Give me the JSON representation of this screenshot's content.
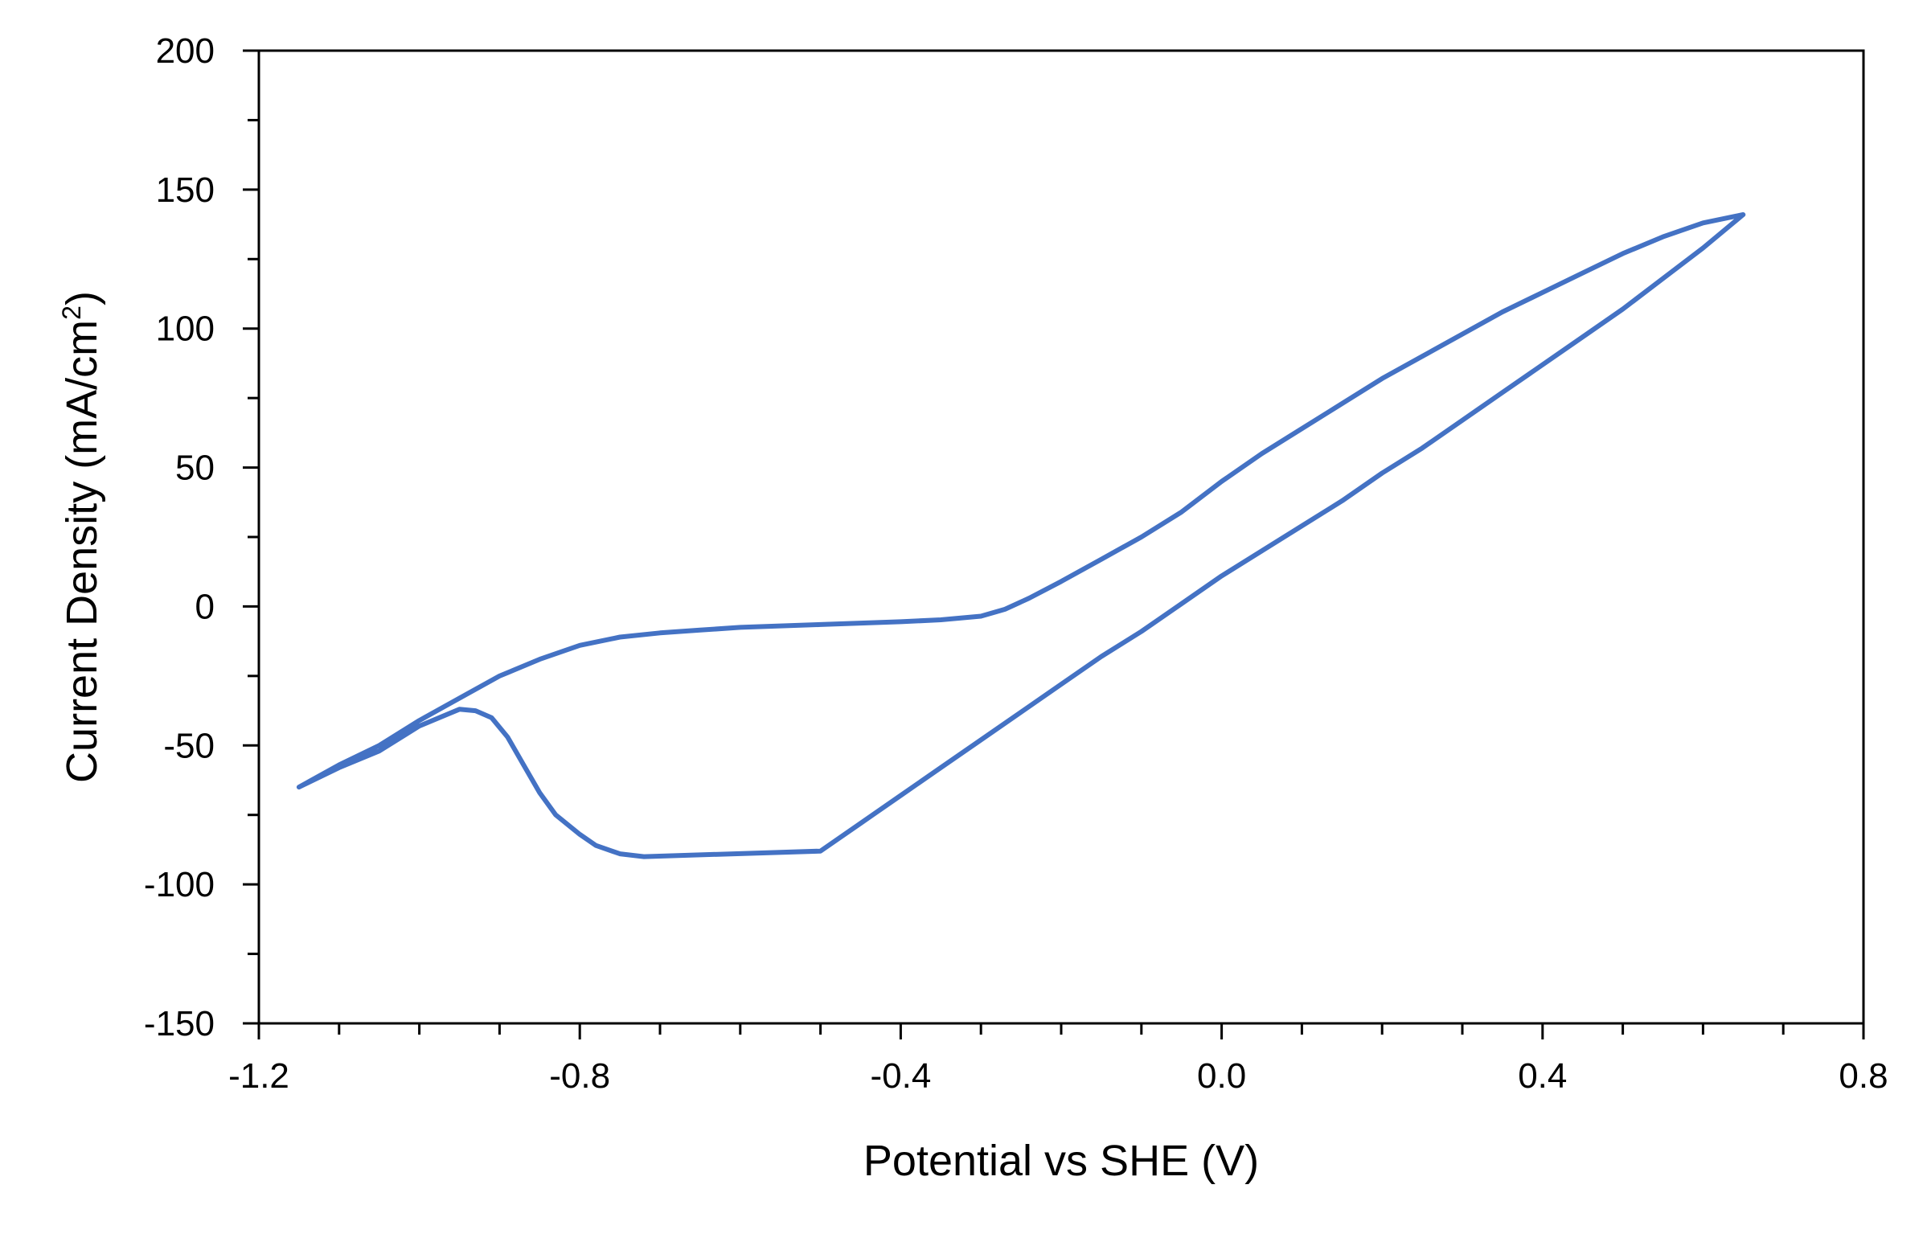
{
  "chart_data": {
    "type": "line",
    "title": "",
    "xlabel": "Potential vs SHE (V)",
    "ylabel": "Current Density  (mA/cm",
    "ylabel_superscript": "2",
    "ylabel_close": ")",
    "xlim": [
      -1.2,
      0.8
    ],
    "ylim": [
      -150,
      200
    ],
    "x_major_ticks": [
      -1.2,
      -0.8,
      -0.4,
      0.0,
      0.4,
      0.8
    ],
    "x_tick_labels": [
      "-1.2",
      "-0.8",
      "-0.4",
      "0.0",
      "0.4",
      "0.8"
    ],
    "x_minor_step": 0.1,
    "y_major_ticks": [
      -150,
      -100,
      -50,
      0,
      50,
      100,
      150,
      200
    ],
    "y_tick_labels": [
      "-150",
      "-100",
      "-50",
      "0",
      "50",
      "100",
      "150",
      "200"
    ],
    "y_minor_step": 25,
    "grid": false,
    "legend": "none",
    "series": [
      {
        "color": "#4472C4",
        "points": [
          [
            0.65,
            141
          ],
          [
            0.6,
            129
          ],
          [
            0.55,
            118
          ],
          [
            0.5,
            107
          ],
          [
            0.45,
            97
          ],
          [
            0.4,
            87
          ],
          [
            0.35,
            77
          ],
          [
            0.3,
            67
          ],
          [
            0.25,
            57
          ],
          [
            0.2,
            48
          ],
          [
            0.15,
            38
          ],
          [
            0.1,
            29
          ],
          [
            0.05,
            20
          ],
          [
            0.0,
            11
          ],
          [
            -0.05,
            1
          ],
          [
            -0.1,
            -9
          ],
          [
            -0.15,
            -18
          ],
          [
            -0.2,
            -28
          ],
          [
            -0.25,
            -38
          ],
          [
            -0.3,
            -48
          ],
          [
            -0.35,
            -58
          ],
          [
            -0.4,
            -68
          ],
          [
            -0.45,
            -78
          ],
          [
            -0.5,
            -88
          ],
          [
            -0.55,
            -98
          ],
          [
            -0.6,
            -108
          ],
          [
            -0.65,
            -118
          ],
          [
            -0.7,
            -128
          ],
          [
            -0.72,
            -132
          ],
          [
            -0.72,
            -90
          ],
          [
            -0.75,
            -89
          ],
          [
            -0.78,
            -86
          ],
          [
            -0.8,
            -82
          ],
          [
            -0.83,
            -75
          ],
          [
            -0.85,
            -67
          ],
          [
            -0.87,
            -57
          ],
          [
            -0.89,
            -47
          ],
          [
            -0.91,
            -40
          ],
          [
            -0.93,
            -37.5
          ],
          [
            -0.95,
            -37
          ],
          [
            -1.0,
            -43
          ],
          [
            -1.05,
            -52
          ],
          [
            -1.1,
            -58
          ],
          [
            -1.15,
            -65
          ],
          [
            -1.1,
            -57
          ],
          [
            -1.05,
            -50
          ],
          [
            -1.0,
            -41
          ],
          [
            -0.95,
            -33
          ],
          [
            -0.9,
            -25
          ],
          [
            -0.85,
            -19
          ],
          [
            -0.8,
            -14
          ],
          [
            -0.75,
            -11
          ],
          [
            -0.7,
            -9.5
          ],
          [
            -0.65,
            -8.5
          ],
          [
            -0.6,
            -7.5
          ],
          [
            -0.5,
            -6.5
          ],
          [
            -0.4,
            -5.5
          ],
          [
            -0.35,
            -4.8
          ],
          [
            -0.3,
            -3.5
          ],
          [
            -0.27,
            -1
          ],
          [
            -0.24,
            3
          ],
          [
            -0.2,
            9
          ],
          [
            -0.15,
            17
          ],
          [
            -0.1,
            25
          ],
          [
            -0.05,
            34
          ],
          [
            0.0,
            45
          ],
          [
            0.05,
            55
          ],
          [
            0.1,
            64
          ],
          [
            0.15,
            73
          ],
          [
            0.2,
            82
          ],
          [
            0.25,
            90
          ],
          [
            0.3,
            98
          ],
          [
            0.35,
            106
          ],
          [
            0.4,
            113
          ],
          [
            0.45,
            120
          ],
          [
            0.5,
            127
          ],
          [
            0.55,
            133
          ],
          [
            0.6,
            138
          ],
          [
            0.65,
            141
          ]
        ]
      }
    ]
  }
}
